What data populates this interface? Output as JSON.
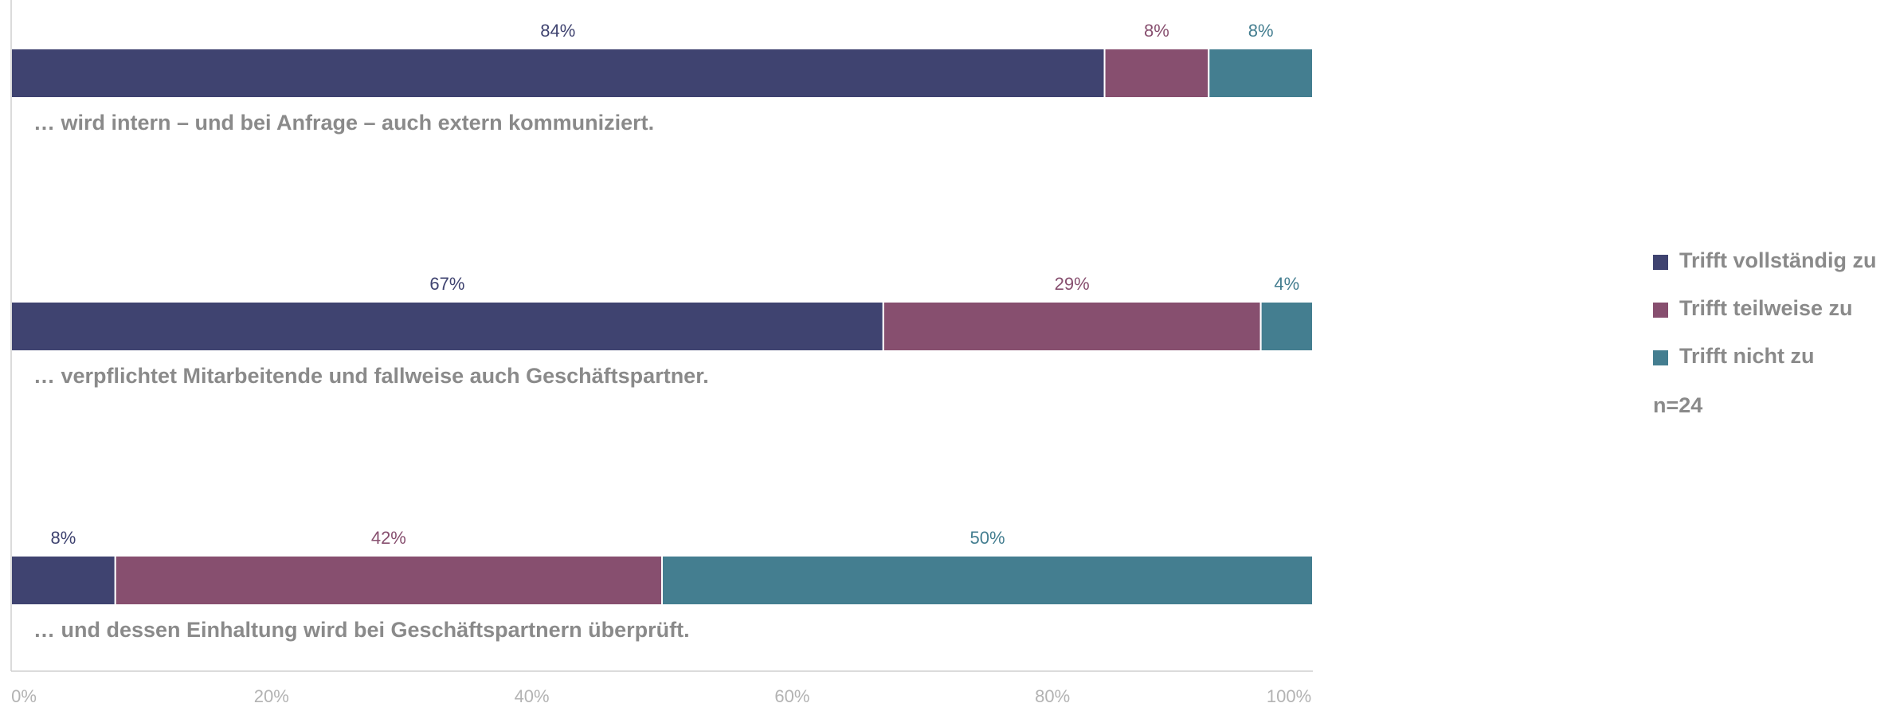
{
  "chart_data": {
    "type": "bar",
    "orientation": "horizontal",
    "stacked": true,
    "categories": [
      "… wird intern – und bei Anfrage – auch extern kommuniziert.",
      "… verpflichtet Mitarbeitende und fallweise auch Geschäftspartner.",
      "… und dessen Einhaltung wird bei Geschäftspartnern überprüft."
    ],
    "series": [
      {
        "name": "Trifft vollständig zu",
        "values": [
          84,
          67,
          8
        ],
        "labels": [
          "84%",
          "67%",
          "8%"
        ],
        "color": "#3f4370"
      },
      {
        "name": "Trifft teilweise zu",
        "values": [
          8,
          29,
          42
        ],
        "labels": [
          "8%",
          "29%",
          "42%"
        ],
        "color": "#874f6f"
      },
      {
        "name": "Trifft nicht zu",
        "values": [
          8,
          4,
          50
        ],
        "labels": [
          "8%",
          "4%",
          "50%"
        ],
        "color": "#447e90"
      }
    ],
    "label_colors": [
      "#3f4370",
      "#874f6f",
      "#447e90"
    ],
    "xlim": [
      0,
      100
    ],
    "ticks": [
      "0%",
      "20%",
      "40%",
      "60%",
      "80%",
      "100%"
    ],
    "grid": false,
    "legend_position": "right",
    "note": "n=24"
  }
}
